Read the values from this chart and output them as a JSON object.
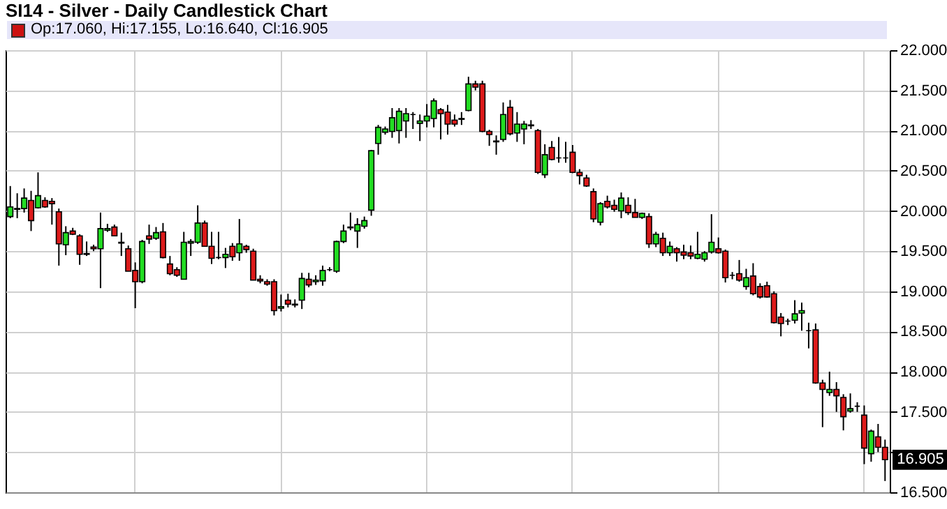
{
  "chart_data": {
    "type": "candlestick",
    "title": "SI14 - Silver - Daily Candlestick Chart",
    "annotations": [
      "Op:17.060, Hi:17.155, Lo:16.640, Cl:16.905",
      {
        "text": "16.905",
        "y": 16.905
      }
    ],
    "categories": [
      null,
      null,
      null,
      null,
      null,
      null,
      null,
      null,
      null,
      null,
      null,
      null,
      null,
      null,
      null,
      null,
      null,
      null,
      null,
      null,
      null,
      null,
      null,
      null,
      null,
      null,
      null,
      null,
      null,
      null,
      null,
      null,
      null,
      null,
      null,
      null,
      null,
      null,
      null,
      null,
      null,
      null,
      null,
      null,
      null,
      null,
      null,
      null,
      null,
      null,
      null,
      null,
      null,
      null,
      null,
      null,
      null,
      null,
      null,
      null,
      null,
      null,
      null,
      null,
      null,
      null,
      null,
      null,
      null,
      null,
      null,
      null,
      null,
      null,
      null,
      null,
      null,
      null,
      null,
      null,
      null,
      null,
      null,
      null,
      null,
      null,
      null,
      null,
      null,
      null,
      null,
      null,
      null,
      null,
      null,
      null,
      null,
      null,
      null,
      null,
      null,
      null,
      null,
      null,
      null,
      null,
      null,
      null,
      null,
      null,
      null,
      null,
      null,
      null,
      null,
      null,
      null,
      null,
      null,
      null,
      null,
      null,
      null,
      null,
      null,
      null,
      null
    ],
    "ohlc": [
      [
        19.93,
        20.31,
        19.91,
        20.05
      ],
      [
        20.02,
        20.22,
        19.91,
        20.03
      ],
      [
        20.03,
        20.28,
        19.98,
        20.16
      ],
      [
        20.13,
        20.25,
        19.75,
        19.88
      ],
      [
        20.04,
        20.48,
        20.03,
        20.19
      ],
      [
        20.13,
        20.17,
        20.04,
        20.05
      ],
      [
        20.12,
        20.16,
        19.83,
        20.09
      ],
      [
        19.99,
        20.03,
        19.32,
        19.59
      ],
      [
        19.58,
        19.81,
        19.45,
        19.73
      ],
      [
        19.75,
        19.79,
        19.7,
        19.71
      ],
      [
        19.69,
        19.71,
        19.33,
        19.46
      ],
      [
        19.46,
        19.62,
        19.44,
        19.47
      ],
      [
        19.55,
        19.58,
        19.5,
        19.53
      ],
      [
        19.53,
        19.98,
        19.04,
        19.78
      ],
      [
        19.76,
        19.84,
        19.74,
        19.78
      ],
      [
        19.8,
        19.83,
        19.69,
        19.69
      ],
      [
        19.61,
        19.73,
        19.44,
        19.6
      ],
      [
        19.53,
        19.57,
        19.25,
        19.25
      ],
      [
        19.26,
        19.36,
        18.79,
        19.12
      ],
      [
        19.12,
        19.64,
        19.1,
        19.62
      ],
      [
        19.69,
        19.83,
        19.59,
        19.65
      ],
      [
        19.66,
        19.8,
        19.64,
        19.73
      ],
      [
        19.74,
        19.85,
        19.41,
        19.42
      ],
      [
        19.34,
        19.44,
        19.2,
        19.22
      ],
      [
        19.27,
        19.3,
        19.18,
        19.2
      ],
      [
        19.15,
        19.74,
        19.15,
        19.61
      ],
      [
        19.6,
        19.65,
        19.44,
        19.62
      ],
      [
        19.61,
        20.07,
        19.59,
        19.85
      ],
      [
        19.85,
        19.88,
        19.56,
        19.56
      ],
      [
        19.56,
        19.74,
        19.34,
        19.41
      ],
      [
        19.42,
        19.74,
        19.4,
        19.42
      ],
      [
        19.42,
        19.54,
        19.29,
        19.46
      ],
      [
        19.56,
        19.6,
        19.38,
        19.43
      ],
      [
        19.48,
        19.9,
        19.38,
        19.59
      ],
      [
        19.56,
        19.58,
        19.48,
        19.52
      ],
      [
        19.5,
        19.53,
        19.14,
        19.14
      ],
      [
        19.15,
        19.2,
        19.1,
        19.13
      ],
      [
        19.12,
        19.15,
        19.07,
        19.09
      ],
      [
        19.12,
        19.15,
        18.7,
        18.76
      ],
      [
        18.79,
        18.96,
        18.75,
        18.81
      ],
      [
        18.89,
        18.97,
        18.8,
        18.84
      ],
      [
        18.83,
        18.9,
        18.8,
        18.84
      ],
      [
        18.89,
        19.23,
        18.78,
        19.16
      ],
      [
        19.15,
        19.23,
        19.05,
        19.08
      ],
      [
        19.12,
        19.2,
        19.08,
        19.14
      ],
      [
        19.13,
        19.32,
        19.07,
        19.26
      ],
      [
        19.27,
        19.3,
        19.25,
        19.27
      ],
      [
        19.25,
        19.63,
        19.23,
        19.62
      ],
      [
        19.62,
        19.83,
        19.6,
        19.75
      ],
      [
        19.79,
        19.98,
        19.76,
        19.8
      ],
      [
        19.75,
        19.91,
        19.54,
        19.83
      ],
      [
        19.81,
        19.93,
        19.78,
        19.88
      ],
      [
        20.01,
        20.76,
        19.94,
        20.75
      ],
      [
        20.84,
        21.07,
        20.7,
        21.04
      ],
      [
        20.98,
        21.05,
        20.95,
        21.02
      ],
      [
        20.99,
        21.28,
        20.91,
        21.16
      ],
      [
        21.0,
        21.28,
        20.84,
        21.24
      ],
      [
        21.12,
        21.28,
        20.91,
        21.21
      ],
      [
        21.2,
        21.23,
        21.02,
        21.2
      ],
      [
        21.09,
        21.2,
        20.87,
        21.12
      ],
      [
        21.12,
        21.33,
        21.04,
        21.18
      ],
      [
        21.15,
        21.4,
        21.04,
        21.37
      ],
      [
        21.26,
        21.28,
        20.89,
        21.21
      ],
      [
        21.23,
        21.32,
        20.95,
        21.08
      ],
      [
        21.13,
        21.2,
        21.05,
        21.08
      ],
      [
        21.14,
        21.23,
        21.07,
        21.15
      ],
      [
        21.25,
        21.67,
        21.24,
        21.58
      ],
      [
        21.58,
        21.62,
        21.5,
        21.54
      ],
      [
        21.58,
        21.62,
        20.98,
        20.99
      ],
      [
        20.99,
        21.01,
        20.81,
        20.95
      ],
      [
        20.87,
        20.94,
        20.7,
        20.86
      ],
      [
        20.89,
        21.35,
        20.86,
        21.2
      ],
      [
        21.29,
        21.38,
        20.94,
        20.96
      ],
      [
        20.97,
        21.23,
        20.86,
        21.08
      ],
      [
        21.02,
        21.12,
        20.83,
        21.08
      ],
      [
        21.07,
        21.13,
        21.02,
        21.06
      ],
      [
        21.0,
        21.02,
        20.46,
        20.48
      ],
      [
        20.45,
        20.83,
        20.41,
        20.7
      ],
      [
        20.79,
        20.87,
        20.63,
        20.64
      ],
      [
        20.66,
        20.92,
        20.6,
        20.66
      ],
      [
        20.66,
        20.86,
        20.6,
        20.66
      ],
      [
        20.73,
        20.82,
        20.47,
        20.48
      ],
      [
        20.48,
        20.52,
        20.33,
        20.44
      ],
      [
        20.41,
        20.45,
        20.3,
        20.31
      ],
      [
        20.24,
        20.28,
        19.86,
        19.9
      ],
      [
        19.86,
        20.11,
        19.82,
        20.09
      ],
      [
        20.12,
        20.19,
        20.03,
        20.05
      ],
      [
        20.07,
        20.14,
        19.99,
        20.02
      ],
      [
        20.0,
        20.23,
        19.91,
        20.16
      ],
      [
        20.07,
        20.17,
        19.95,
        19.98
      ],
      [
        19.98,
        20.15,
        19.92,
        19.92
      ],
      [
        19.92,
        19.98,
        19.9,
        19.97
      ],
      [
        19.93,
        19.97,
        19.54,
        19.59
      ],
      [
        19.59,
        19.74,
        19.55,
        19.71
      ],
      [
        19.66,
        19.73,
        19.44,
        19.48
      ],
      [
        19.48,
        19.62,
        19.44,
        19.56
      ],
      [
        19.53,
        19.55,
        19.37,
        19.48
      ],
      [
        19.49,
        19.58,
        19.4,
        19.45
      ],
      [
        19.48,
        19.57,
        19.4,
        19.44
      ],
      [
        19.41,
        19.74,
        19.4,
        19.46
      ],
      [
        19.4,
        19.5,
        19.37,
        19.48
      ],
      [
        19.49,
        19.96,
        19.47,
        19.61
      ],
      [
        19.53,
        19.67,
        19.47,
        19.48
      ],
      [
        19.5,
        19.52,
        19.11,
        19.17
      ],
      [
        19.2,
        19.24,
        19.15,
        19.2
      ],
      [
        19.22,
        19.39,
        19.12,
        19.14
      ],
      [
        19.06,
        19.28,
        19.02,
        19.17
      ],
      [
        19.19,
        19.35,
        18.95,
        18.97
      ],
      [
        19.06,
        19.1,
        18.91,
        18.93
      ],
      [
        19.07,
        19.12,
        18.92,
        18.93
      ],
      [
        18.97,
        19.0,
        18.6,
        18.61
      ],
      [
        18.68,
        18.73,
        18.44,
        18.6
      ],
      [
        18.63,
        18.66,
        18.58,
        18.63
      ],
      [
        18.64,
        18.89,
        18.6,
        18.72
      ],
      [
        18.73,
        18.86,
        18.51,
        18.76
      ],
      [
        18.51,
        18.61,
        18.29,
        18.51
      ],
      [
        18.52,
        18.6,
        17.85,
        17.86
      ],
      [
        17.86,
        17.9,
        17.31,
        17.78
      ],
      [
        17.74,
        18.0,
        17.7,
        17.78
      ],
      [
        17.78,
        17.87,
        17.5,
        17.7
      ],
      [
        17.68,
        17.72,
        17.27,
        17.44
      ],
      [
        17.51,
        17.73,
        17.49,
        17.54
      ],
      [
        17.57,
        17.62,
        17.5,
        17.57
      ],
      [
        17.46,
        17.58,
        16.85,
        17.05
      ],
      [
        16.98,
        17.28,
        16.88,
        17.26
      ],
      [
        17.19,
        17.35,
        17.0,
        17.06
      ],
      [
        17.06,
        17.155,
        16.64,
        16.905
      ]
    ],
    "ylim": [
      16.5,
      22
    ],
    "yticks": [
      {
        "value": 16.5,
        "label": "16.500"
      },
      {
        "value": 17,
        "label": null
      },
      {
        "value": 17.5,
        "label": "17.500"
      },
      {
        "value": 18,
        "label": "18.000"
      },
      {
        "value": 18.5,
        "label": "18.500"
      },
      {
        "value": 19,
        "label": "19.000"
      },
      {
        "value": 19.5,
        "label": "19.500"
      },
      {
        "value": 20,
        "label": "20.000"
      },
      {
        "value": 20.5,
        "label": "20.500"
      },
      {
        "value": 21,
        "label": "21.000"
      },
      {
        "value": 21.5,
        "label": "21.500"
      },
      {
        "value": 22,
        "label": "22.000"
      }
    ],
    "grid": true
  }
}
